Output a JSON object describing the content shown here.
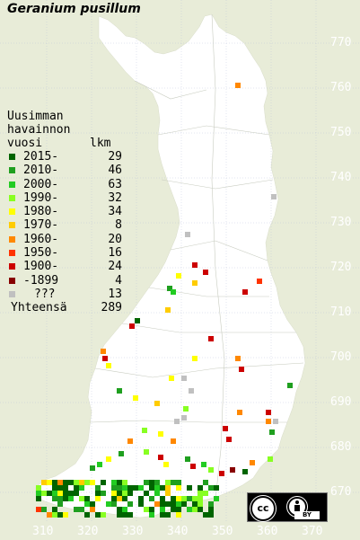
{
  "title": "Geranium pusillum",
  "legend": {
    "header_lines": [
      "Uusimman",
      "havainnon",
      "vuosi"
    ],
    "count_header": "lkm",
    "rows": [
      {
        "label": "2015-",
        "count": "29",
        "color": "#006400"
      },
      {
        "label": "2010-",
        "count": "46",
        "color": "#1f9f1f"
      },
      {
        "label": "2000-",
        "count": "63",
        "color": "#22cc22"
      },
      {
        "label": "1990-",
        "count": "32",
        "color": "#88ff22"
      },
      {
        "label": "1980-",
        "count": "34",
        "color": "#ffff00"
      },
      {
        "label": "1970-",
        "count": "8",
        "color": "#ffcc00"
      },
      {
        "label": "1960-",
        "count": "20",
        "color": "#ff8800"
      },
      {
        "label": "1950-",
        "count": "16",
        "color": "#ff3300"
      },
      {
        "label": "1900-",
        "count": "24",
        "color": "#cc0000"
      },
      {
        "label": "-1899",
        "count": "4",
        "color": "#880000"
      },
      {
        "label": "???",
        "count": "13",
        "color": "#c0c0c0"
      }
    ],
    "total_label": "Yhteensä",
    "total_count": "289"
  },
  "y_axis_labels": [
    "770",
    "760",
    "750",
    "740",
    "730",
    "720",
    "710",
    "700",
    "690",
    "680",
    "670"
  ],
  "x_axis_labels": [
    "310",
    "320",
    "330",
    "340",
    "350",
    "360",
    "370"
  ],
  "license": {
    "by_label": "BY",
    "cc_label": "cc"
  }
}
